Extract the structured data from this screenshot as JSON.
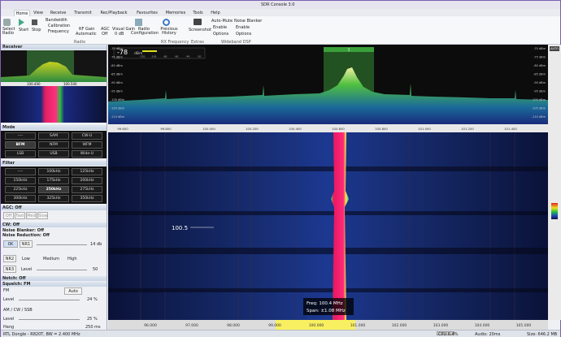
{
  "window": {
    "title": "SDR Console 3.0",
    "style": "Style"
  },
  "tabs": [
    "Home",
    "View",
    "Receive",
    "Transmit",
    "Rec/Playback",
    "Favourites",
    "Memories",
    "Tools",
    "Help"
  ],
  "ribbon": {
    "select_radio": "Select Radio",
    "start": "Start",
    "stop": "Stop",
    "bandwidth": "Bandwidth",
    "calibration": "Calibration",
    "frequency": "Frequency",
    "rf_gain": "RF Gain",
    "rf_gain_value": "Automatic",
    "agc": "AGC",
    "agc_value": "Off",
    "visual_gain": "Visual Gain",
    "visual_gain_value": "0 dB",
    "radio_configuration": "Radio Configuration",
    "group_radio": "Radio",
    "previous_history": "Previous History",
    "screenshot": "Screenshot",
    "group_rx_frequency": "RX Frequency",
    "group_extras": "Extras",
    "auto_mute": "Auto-Mute",
    "noise_blanker": "Noise Blanker",
    "enable": "Enable",
    "options": "Options",
    "enable_2": "Enable",
    "options_2": "Options",
    "group_wideband_dsp": "Wideband DSP"
  },
  "receiver": {
    "title": "Receiver",
    "freqs": [
      "100.400",
      "100.500"
    ]
  },
  "mode": {
    "title": "Mode",
    "buttons": [
      "----",
      "SAM",
      "CW-U",
      "BFM",
      "NFM",
      "WFM",
      "LSB",
      "USB",
      "Wide-U"
    ]
  },
  "filter": {
    "title": "Filter",
    "buttons": [
      "----",
      "100kHz",
      "125kHz",
      "150kHz",
      "175kHz",
      "200kHz",
      "225kHz",
      "250kHz",
      "275kHz",
      "300kHz",
      "325kHz",
      "350kHz"
    ]
  },
  "agc": {
    "title": "AGC: Off",
    "buttons": [
      "Off",
      "Fast",
      "Med",
      "Slow"
    ]
  },
  "dsp": {
    "cw": "CW: Off",
    "noise_blanker": "Noise Blanker: Off",
    "noise_reduction": "Noise Reduction: Off",
    "ok": "0K",
    "nr1": "NR1",
    "nr1_value": "14 db",
    "nr2": "NR2",
    "low": "Low",
    "medium": "Medium",
    "high": "High",
    "nr3": "NR3",
    "level": "Level",
    "nr3_value": "50"
  },
  "squelch": {
    "notch": "Notch: Off",
    "title": "Squelch: FM",
    "fm": "FM",
    "auto": "Auto",
    "level": "Level",
    "fm_level": "24 %",
    "am": "AM / CW / SSB",
    "level_2": "Level",
    "am_level": "25 %",
    "hang": "Hang",
    "hang_value": "250 ms"
  },
  "spectrum": {
    "signal": "-78",
    "signal_unit": "dBm",
    "meter_scale": [
      "-120",
      "-100",
      "-80",
      "-60",
      "-40",
      "-20"
    ],
    "marker": "1",
    "auto": "AUTO",
    "db_labels": [
      "-70 dBm",
      "-75 dBm",
      "-80 dBm",
      "-85 dBm",
      "-90 dBm",
      "-95 dBm",
      "-100 dBm",
      "-105 dBm",
      "-110 dBm"
    ],
    "freq_labels": [
      "99.600",
      "99.800",
      "100.000",
      "100.200",
      "100.400",
      "100.600",
      "100.800",
      "101.000",
      "101.200",
      "101.400"
    ]
  },
  "waterfall": {
    "station": "100.5",
    "freq": "Freq: 100.4 MHz",
    "span": "Span: ±1.08 MHz",
    "freq_labels": [
      "96.000",
      "97.000",
      "98.000",
      "99.000",
      "100.000",
      "101.000",
      "102.000",
      "103.000",
      "104.000",
      "105.000"
    ]
  },
  "status": {
    "device": "RTL Dongle - R820T, BW = 2.400 MHz",
    "cpu": "CPU 6.4%",
    "audio": "Audio: 20ms",
    "size": "Size: 646.2 MB"
  }
}
